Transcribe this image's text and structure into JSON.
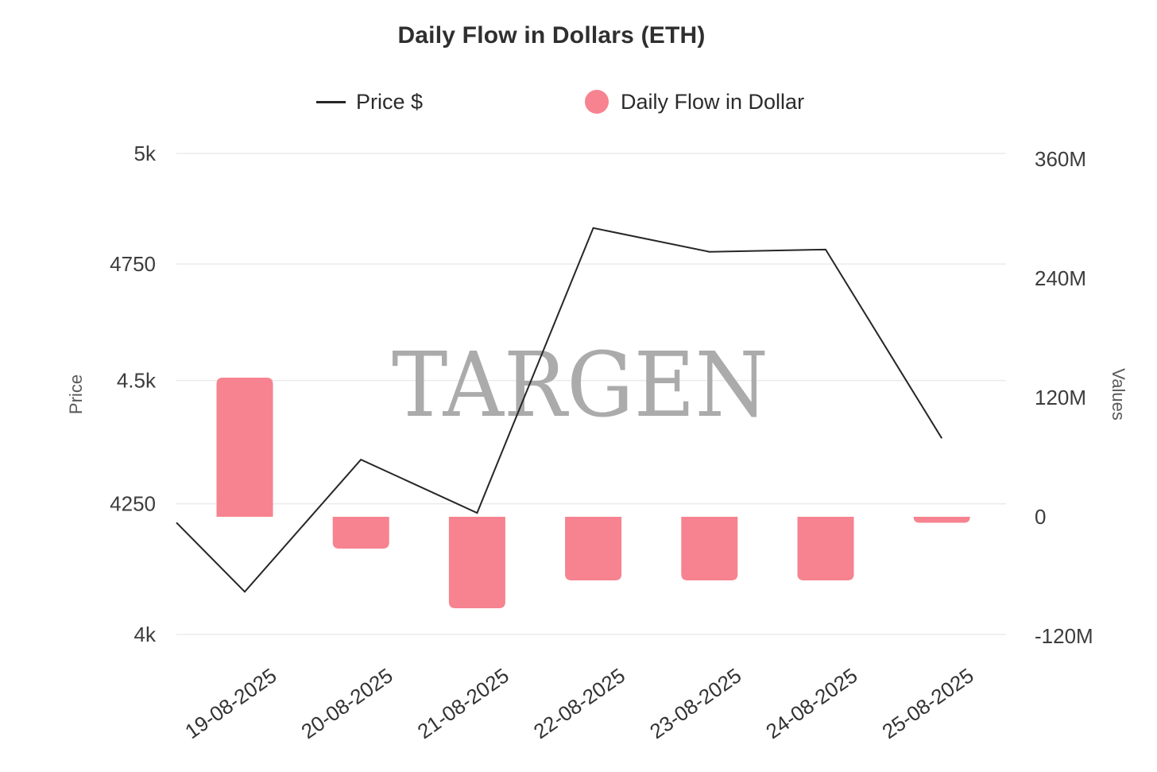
{
  "header": {
    "title": "Daily Flow in Dollars (ETH)"
  },
  "legend": {
    "items": [
      {
        "label": "Price $",
        "symbol": "line",
        "color": "#262626"
      },
      {
        "label": "Daily Flow in Dollar",
        "symbol": "circle",
        "color": "#f6838f"
      }
    ]
  },
  "watermark": {
    "text": "TARGEN",
    "color": "#ababab"
  },
  "chart_data": {
    "type": "mixed-line-bar",
    "title": "Daily Flow in Dollars (ETH)",
    "categories": [
      "19-08-2025",
      "20-08-2025",
      "21-08-2025",
      "22-08-2025",
      "23-08-2025",
      "24-08-2025",
      "25-08-2025"
    ],
    "series": [
      {
        "name": "Price $",
        "type": "line",
        "axis": "left",
        "color": "#262626",
        "values": [
          4080,
          4338,
          4232,
          4830,
          4777,
          4782,
          4381
        ],
        "edge_start_value": 4213
      },
      {
        "name": "Daily Flow in Dollar",
        "type": "bar",
        "axis": "right",
        "color": "#f6838f",
        "unit": "millions USD",
        "values": [
          140,
          -32,
          -92,
          -64,
          -64,
          -64,
          -6
        ]
      }
    ],
    "y_axis_left": {
      "title": "Price",
      "scale": "log",
      "min": 4000,
      "max": 5000,
      "tick_values": [
        5000,
        4750,
        4500,
        4250,
        4000
      ],
      "tick_labels": [
        "5k",
        "4750",
        "4.5k",
        "4250",
        "4k"
      ]
    },
    "y_axis_right": {
      "title": "Values",
      "scale": "linear",
      "min": -120,
      "max": 360,
      "unit": "M",
      "tick_values": [
        360,
        240,
        120,
        0,
        -120
      ],
      "tick_labels": [
        "360M",
        "240M",
        "120M",
        "0",
        "-120M"
      ]
    },
    "grid": true,
    "legend_position": "top",
    "colors": {
      "gridline": "#ebebeb",
      "tick_label": "#3c3c3c",
      "axis_title": "#5a5a5a",
      "line_series": "#262626",
      "bar_series": "#f6838f"
    }
  }
}
